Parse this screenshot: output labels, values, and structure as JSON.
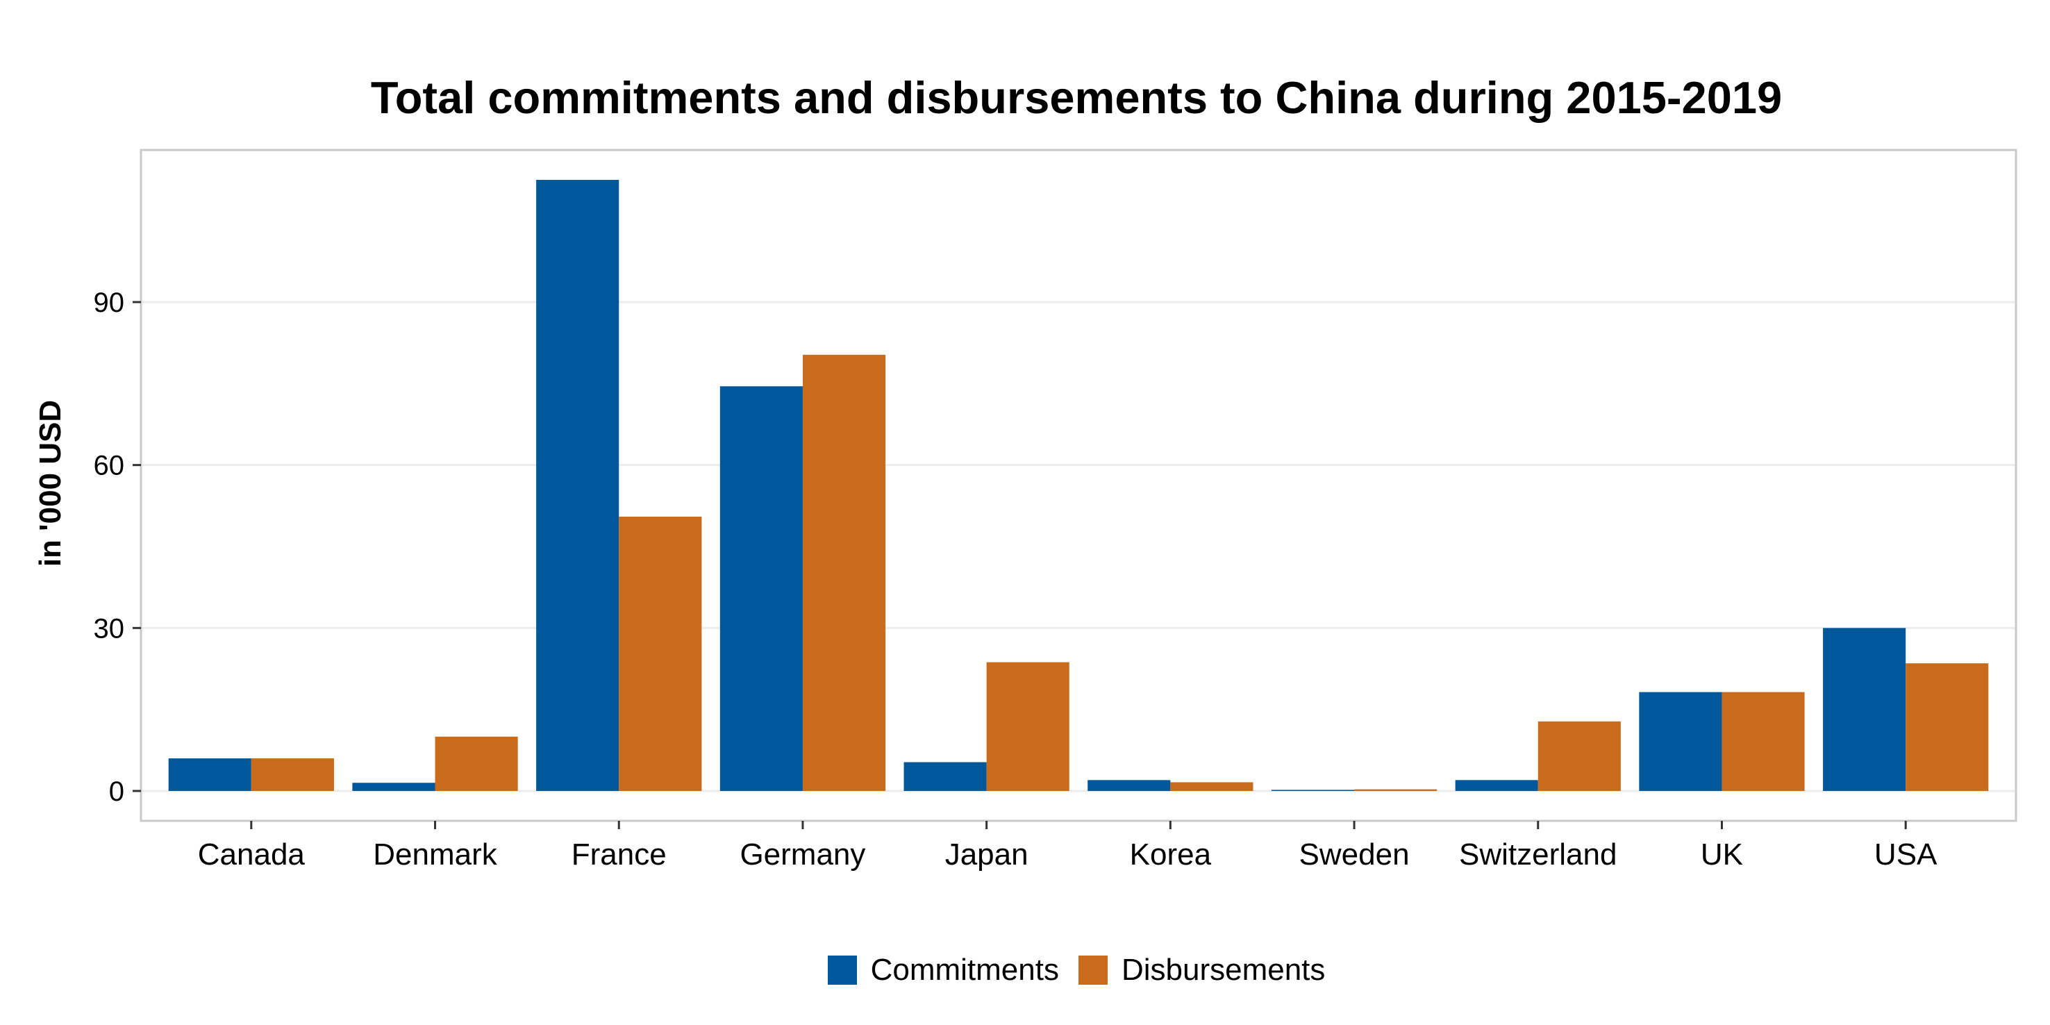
{
  "chart_data": {
    "type": "bar",
    "title": "Total commitments and disbursements to China during 2015-2019",
    "xlabel": "",
    "ylabel": "in '000 USD",
    "categories": [
      "Canada",
      "Denmark",
      "France",
      "Germany",
      "Japan",
      "Korea",
      "Sweden",
      "Switzerland",
      "UK",
      "USA"
    ],
    "series": [
      {
        "name": "Commitments",
        "color": "#00579a",
        "values": [
          6,
          1.5,
          112.5,
          74.5,
          5.3,
          2,
          0.2,
          2,
          18.2,
          30
        ]
      },
      {
        "name": "Disbursements",
        "color": "#c96b1a",
        "values": [
          6,
          10,
          50.5,
          80.3,
          23.7,
          1.6,
          0.3,
          12.8,
          18.2,
          23.5
        ]
      }
    ],
    "ylim": [
      -5.5,
      118
    ],
    "yticks": [
      0,
      30,
      60,
      90
    ],
    "grid": true,
    "legend_position": "bottom"
  }
}
